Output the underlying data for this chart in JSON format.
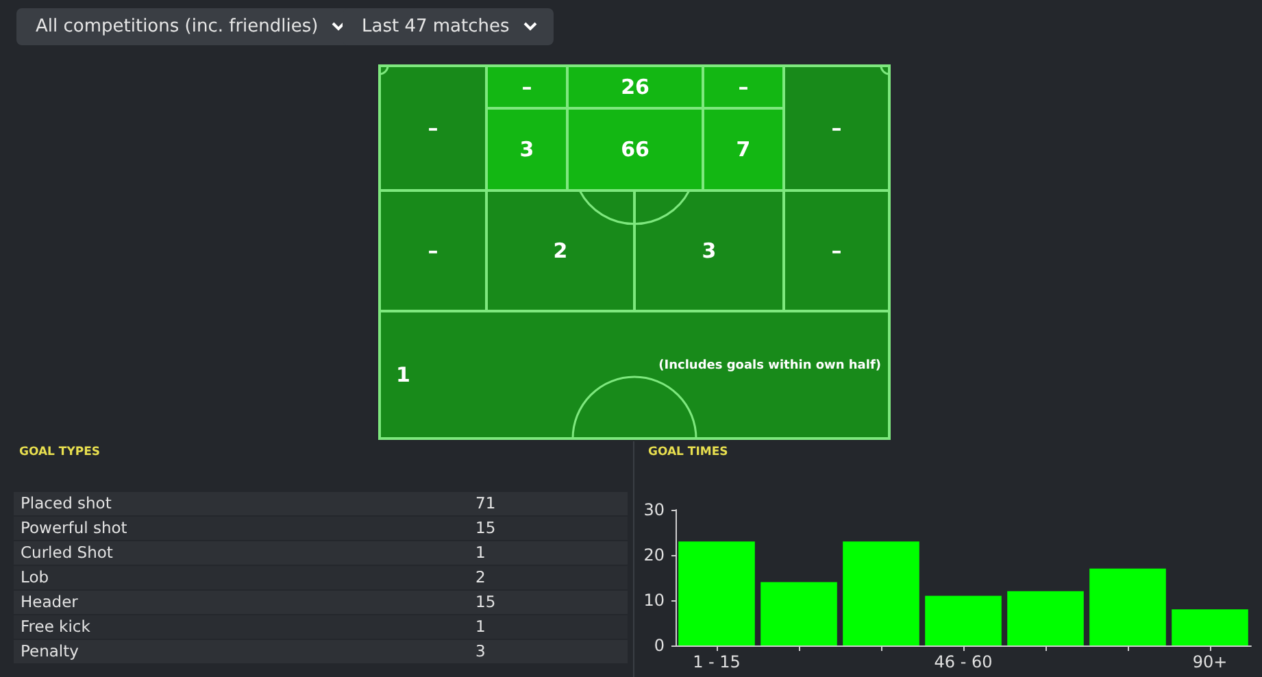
{
  "chart_data": [
    {
      "type": "other",
      "annotations": [
        "All competitions (inc. friendlies)",
        "Last 47 matches"
      ]
    },
    {
      "type": "other",
      "categories": [
        null,
        null,
        null,
        null,
        null,
        null,
        null,
        null,
        null,
        null,
        null,
        null,
        null
      ],
      "value_labels": [
        "–",
        "–",
        "26",
        "–",
        "3",
        "66",
        "7",
        "–",
        "–",
        "2",
        "3",
        "–",
        "1"
      ],
      "colors": [
        "#188a1a",
        "#13b713",
        "#13b713",
        "#13b713",
        "#13b713",
        "#13b713",
        "#13b713",
        "#188a1a",
        "#188a1a",
        "#188a1a",
        "#188a1a",
        "#188a1a",
        "#188a1a"
      ],
      "annotations": [
        "(Includes goals within own half)"
      ]
    },
    {
      "type": "other",
      "title": "GOAL TYPES",
      "categories": [
        "Placed shot",
        "Powerful shot",
        "Curled Shot",
        "Lob",
        "Header",
        "Free kick",
        "Penalty"
      ],
      "values": [
        71,
        15,
        1,
        2,
        15,
        1,
        3
      ],
      "data_labels": true
    },
    {
      "type": "bar",
      "title": "GOAL TIMES",
      "categories": [
        "1 - 15",
        null,
        null,
        "46 - 60",
        null,
        null,
        "90+"
      ],
      "values": [
        23,
        14,
        23,
        11,
        12,
        17,
        8
      ],
      "color": "#00ff00",
      "ylim": [
        0,
        30
      ],
      "yticks": [
        0,
        10,
        20,
        30
      ],
      "grid": false
    }
  ]
}
